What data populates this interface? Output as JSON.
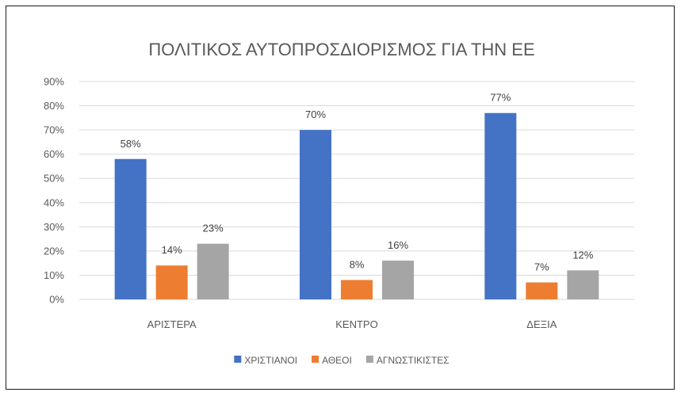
{
  "chart_data": {
    "type": "bar",
    "title": "ΠΟΛΙΤΙΚΟΣ ΑΥΤΟΠΡΟΣΔΙΟΡΙΣΜΟΣ ΓΙΑ ΤΗΝ ΕΕ",
    "categories": [
      "ΑΡΙΣΤΕΡΑ",
      "ΚΕΝΤΡΟ",
      "ΔΕΞΙΑ"
    ],
    "series": [
      {
        "name": "ΧΡΙΣΤΙΑΝΟΙ",
        "color": "#4472c4",
        "values": [
          58,
          70,
          77
        ],
        "labels": [
          "58%",
          "70%",
          "77%"
        ]
      },
      {
        "name": "ΑΘΕΟΙ",
        "color": "#ed7d31",
        "values": [
          14,
          8,
          7
        ],
        "labels": [
          "14%",
          "8%",
          "7%"
        ]
      },
      {
        "name": "ΑΓΝΩΣΤΙΚΙΣΤΕΣ",
        "color": "#a5a5a5",
        "values": [
          23,
          16,
          12
        ],
        "labels": [
          "23%",
          "16%",
          "12%"
        ]
      }
    ],
    "ylim": [
      0,
      90
    ],
    "yticks": [
      0,
      10,
      20,
      30,
      40,
      50,
      60,
      70,
      80,
      90
    ],
    "ytick_labels": [
      "0%",
      "10%",
      "20%",
      "30%",
      "40%",
      "50%",
      "60%",
      "70%",
      "80%",
      "90%"
    ],
    "grid": true,
    "legend_position": "bottom",
    "data_labels": true
  }
}
